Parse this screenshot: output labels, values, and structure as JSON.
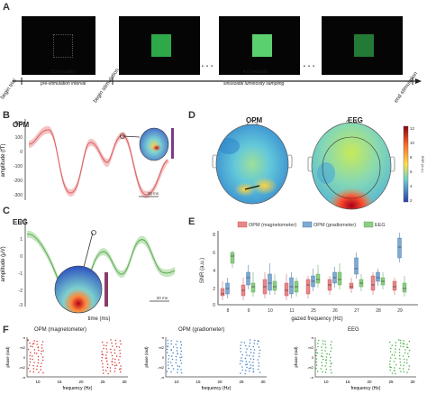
{
  "panels": {
    "a": "A",
    "b": "B",
    "c": "C",
    "d": "D",
    "e": "E",
    "f": "F"
  },
  "timeline": {
    "interval1": "2.0 seconds",
    "interval1_desc": "pre-stimulation interval",
    "interval2": "4.0 seconds",
    "interval2_desc": "sinusoidal luminosity sampling",
    "begin_trial": "begin trial",
    "begin_stimulation": "begin stimulation",
    "end_stimulation": "end stimulation",
    "ellipsis": "• • •",
    "stim_colors": [
      "#2fa84a",
      "#5ccf6f",
      "#237a36"
    ]
  },
  "panel_b": {
    "title": "OPM",
    "ylabel": "amplitude (fT)",
    "yticks": [
      "200",
      "100",
      "0",
      "-100",
      "-200",
      "-300"
    ],
    "scale": "20 ms"
  },
  "panel_c": {
    "title": "EEG",
    "ylabel": "amplitude (μV)",
    "yticks": [
      "2",
      "1",
      "0",
      "-1",
      "-2",
      "-3"
    ],
    "xlabel": "time (ms)",
    "scale": "20 ms"
  },
  "panel_d": {
    "opm_title": "OPM",
    "eeg_title": "EEG",
    "colorbar_ticks": [
      "12",
      "10",
      "8",
      "6",
      "4",
      "2"
    ],
    "colorbar_label": "SNR (a.u.)"
  },
  "panel_e": {
    "legend": [
      "OPM (magnetometer)",
      "OPM (gradiometer)",
      "EEG"
    ],
    "colors": [
      "#e8868a",
      "#7eaad4",
      "#8ccf84"
    ],
    "ylabel": "SNR (a.u.)",
    "xlabel": "gazed frequency (Hz)",
    "yticks": [
      "8",
      "6",
      "4",
      "2",
      "0"
    ],
    "xticks": [
      "8",
      "9",
      "10",
      "11",
      "25",
      "26",
      "27",
      "28",
      "29"
    ]
  },
  "panel_f": {
    "titles": [
      "OPM (magnetometer)",
      "OPM (gradiometer)",
      "EEG"
    ],
    "ylabel": "phase (rad)",
    "xlabel": "frequency (Hz)",
    "xticks": [
      "10",
      "15",
      "20",
      "25",
      "30"
    ],
    "yticks": [
      "π",
      "π/2",
      "0",
      "-π/2",
      "-π"
    ],
    "colors": [
      "#d9342b",
      "#3f7fc6",
      "#3fae3f"
    ]
  }
}
